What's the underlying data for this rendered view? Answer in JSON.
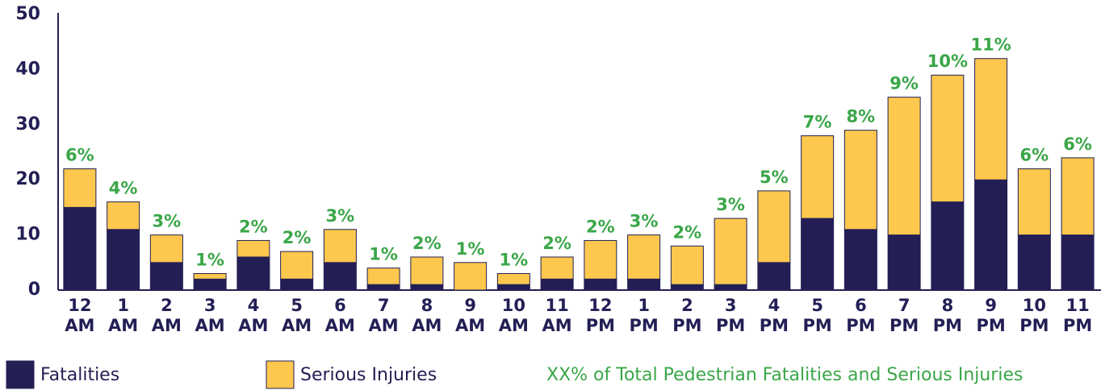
{
  "chart_data": {
    "type": "stacked_bar",
    "categories": [
      [
        "12",
        "AM"
      ],
      [
        "1",
        "AM"
      ],
      [
        "2",
        "AM"
      ],
      [
        "3",
        "AM"
      ],
      [
        "4",
        "AM"
      ],
      [
        "5",
        "AM"
      ],
      [
        "6",
        "AM"
      ],
      [
        "7",
        "AM"
      ],
      [
        "8",
        "AM"
      ],
      [
        "9",
        "AM"
      ],
      [
        "10",
        "AM"
      ],
      [
        "11",
        "AM"
      ],
      [
        "12",
        "PM"
      ],
      [
        "1",
        "PM"
      ],
      [
        "2",
        "PM"
      ],
      [
        "3",
        "PM"
      ],
      [
        "4",
        "PM"
      ],
      [
        "5",
        "PM"
      ],
      [
        "6",
        "PM"
      ],
      [
        "7",
        "PM"
      ],
      [
        "8",
        "PM"
      ],
      [
        "9",
        "PM"
      ],
      [
        "10",
        "PM"
      ],
      [
        "11",
        "PM"
      ]
    ],
    "series": [
      {
        "name": "Fatalities",
        "color": "#231f55",
        "values": [
          15,
          11,
          5,
          2,
          6,
          2,
          5,
          1,
          1,
          0,
          1,
          2,
          2,
          2,
          1,
          1,
          5,
          13,
          11,
          10,
          16,
          20,
          10,
          10
        ]
      },
      {
        "name": "Serious Injuries",
        "color": "#fdc84d",
        "values": [
          7,
          5,
          5,
          1,
          3,
          5,
          6,
          3,
          5,
          5,
          2,
          4,
          7,
          8,
          7,
          12,
          13,
          15,
          18,
          25,
          23,
          22,
          12,
          14
        ]
      }
    ],
    "percent_labels": [
      "6%",
      "4%",
      "3%",
      "1%",
      "2%",
      "2%",
      "3%",
      "1%",
      "2%",
      "1%",
      "1%",
      "2%",
      "2%",
      "3%",
      "2%",
      "3%",
      "5%",
      "7%",
      "8%",
      "9%",
      "10%",
      "11%",
      "6%",
      "6%"
    ],
    "percent_legend": "XX% of Total Pedestrian Fatalities and Serious Injuries",
    "percent_color": "#3aa648",
    "ylim": [
      0,
      50
    ],
    "yticks": [
      0,
      10,
      20,
      30,
      40,
      50
    ],
    "grid": false
  }
}
